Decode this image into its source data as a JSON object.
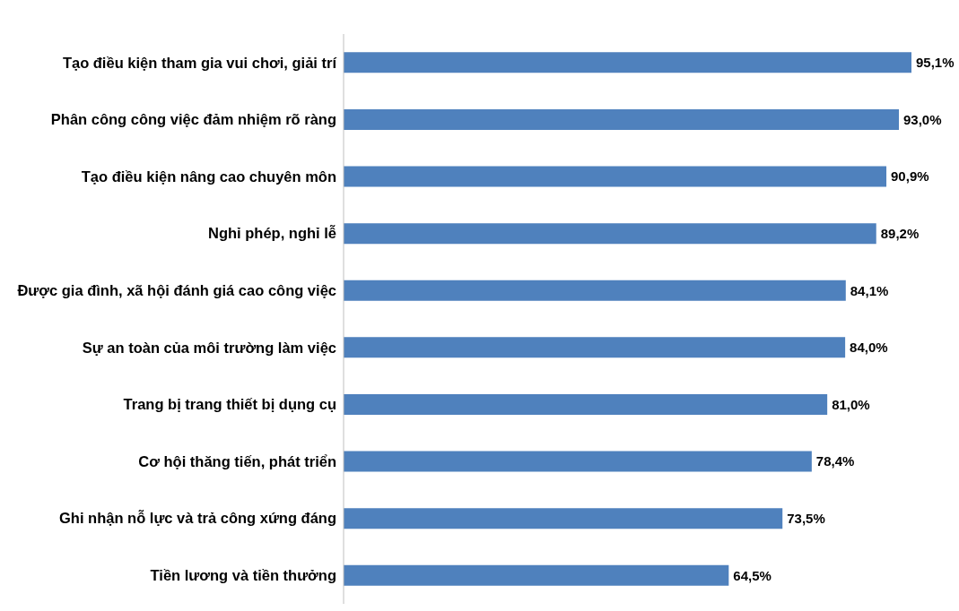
{
  "chart_data": {
    "type": "bar",
    "orientation": "horizontal",
    "relative": false,
    "categories": [
      "Tạo điều kiện tham gia vui chơi, giải trí",
      "Phân công công việc đảm nhiệm rõ ràng",
      "Tạo điều kiện nâng cao chuyên môn",
      "Nghỉ phép, nghỉ lễ",
      "Được gia đình, xã hội đánh giá cao công việc",
      "Sự an toàn của môi trường làm việc",
      "Trang bị trang thiết bị dụng cụ",
      "Cơ hội thăng tiến, phát triển",
      "Ghi nhận nỗ lực và trả công xứng đáng",
      "Tiền lương và tiền thưởng"
    ],
    "values": [
      95.1,
      93.0,
      90.9,
      89.2,
      84.1,
      84.0,
      81.0,
      78.4,
      73.5,
      64.5
    ],
    "value_labels": [
      "95,1%",
      "93,0%",
      "90,9%",
      "89,2%",
      "84,1%",
      "84,0%",
      "81,0%",
      "78,4%",
      "73,5%",
      "64,5%"
    ],
    "color": "#4f81bd"
  }
}
